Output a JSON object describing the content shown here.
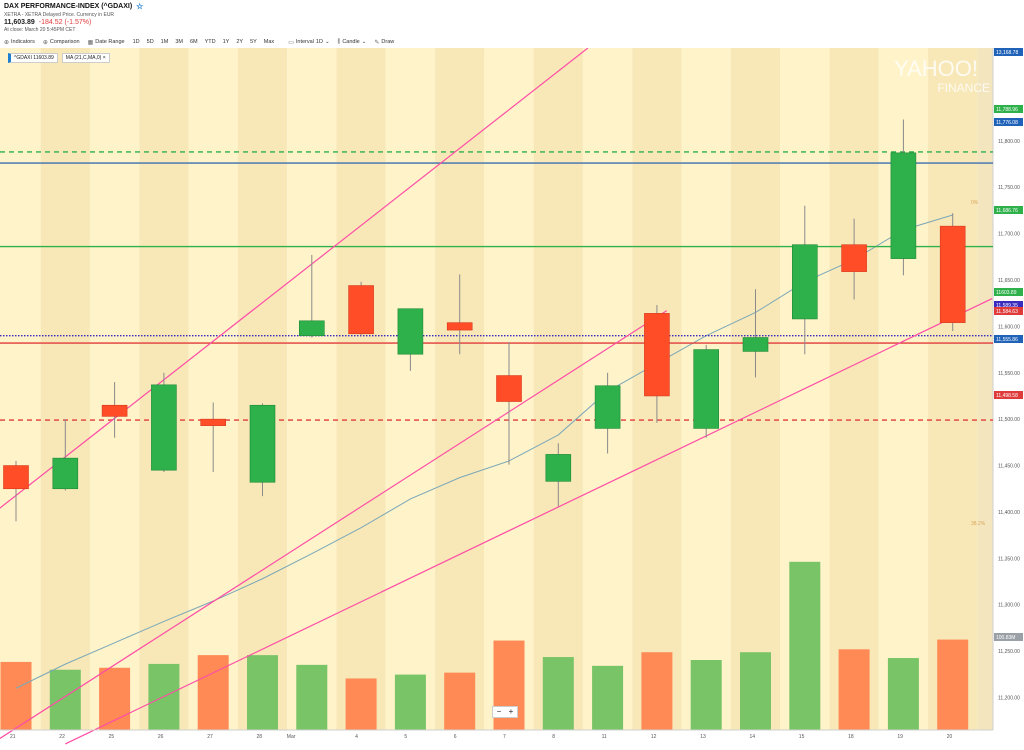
{
  "header": {
    "title": "DAX PERFORMANCE-INDEX (^GDAXI)",
    "subtitle": "XETRA - XETRA Delayed Price. Currency in EUR",
    "price": "11,603.89",
    "change": "-184.52 (-1.57%)",
    "close_note": "At close: March 20 5:45PM CET"
  },
  "toolbar": {
    "indicators": "Indicators",
    "comparison": "Comparison",
    "date_range": "Date Range",
    "ranges": [
      "1D",
      "5D",
      "1M",
      "3M",
      "6M",
      "YTD",
      "1Y",
      "2Y",
      "5Y",
      "Max"
    ],
    "interval": "Interval",
    "interval_value": "1D",
    "candle": "Candle",
    "draw": "Draw"
  },
  "legend": {
    "ticker": "^GDAXI 11603.89",
    "ma": "MA (21,C,MA,0)",
    "close": "×"
  },
  "zoom": {
    "minus": "−",
    "plus": "+"
  },
  "watermark": "YAHOO! FINANCE",
  "colors": {
    "up": "#2eb04a",
    "down": "#ff4d28",
    "vol_up": "#78c466",
    "vol_down": "#ff8a55",
    "trend": "#ff4da6",
    "ma": "#7aa7b8",
    "bg": "#fff3c9",
    "bg_alt": "#f8e8b8"
  },
  "chart_data": {
    "type": "candlestick",
    "x": [
      "21",
      "22",
      "25",
      "26",
      "27",
      "28",
      "Mar",
      "4",
      "5",
      "6",
      "7",
      "8",
      "11",
      "12",
      "13",
      "14",
      "15",
      "18",
      "19",
      "20"
    ],
    "candles": [
      {
        "o": 11450,
        "h": 11455,
        "l": 11390,
        "c": 11425
      },
      {
        "o": 11425,
        "h": 11500,
        "l": 11423,
        "c": 11458
      },
      {
        "o": 11515,
        "h": 11540,
        "l": 11480,
        "c": 11503
      },
      {
        "o": 11445,
        "h": 11550,
        "l": 11443,
        "c": 11537
      },
      {
        "o": 11500,
        "h": 11518,
        "l": 11443,
        "c": 11493
      },
      {
        "o": 11432,
        "h": 11517,
        "l": 11417,
        "c": 11515
      },
      {
        "o": 11590,
        "h": 11677,
        "l": 11588,
        "c": 11606
      },
      {
        "o": 11644,
        "h": 11648,
        "l": 11590,
        "c": 11592
      },
      {
        "o": 11570,
        "h": 11614,
        "l": 11552,
        "c": 11619
      },
      {
        "o": 11604,
        "h": 11656,
        "l": 11570,
        "c": 11596
      },
      {
        "o": 11547,
        "h": 11583,
        "l": 11451,
        "c": 11519
      },
      {
        "o": 11433,
        "h": 11474,
        "l": 11406,
        "c": 11462
      },
      {
        "o": 11490,
        "h": 11550,
        "l": 11463,
        "c": 11536
      },
      {
        "o": 11614,
        "h": 11623,
        "l": 11496,
        "c": 11525
      },
      {
        "o": 11490,
        "h": 11580,
        "l": 11480,
        "c": 11575
      },
      {
        "o": 11573,
        "h": 11640,
        "l": 11545,
        "c": 11588
      },
      {
        "o": 11608,
        "h": 11730,
        "l": 11570,
        "c": 11688
      },
      {
        "o": 11688,
        "h": 11716,
        "l": 11629,
        "c": 11659
      },
      {
        "o": 11673,
        "h": 11823,
        "l": 11655,
        "c": 11787
      },
      {
        "o": 11708,
        "h": 11722,
        "l": 11595,
        "c": 11604
      }
    ],
    "volume": [
      70,
      62,
      64,
      68,
      77,
      77,
      67,
      53,
      57,
      59,
      92,
      75,
      66,
      80,
      72,
      80,
      173,
      83,
      74,
      93
    ],
    "ma": [
      11210,
      11236,
      11259,
      11282,
      11304,
      11328,
      11355,
      11383,
      11414,
      11437,
      11455,
      11483,
      11530,
      11560,
      11590,
      11615,
      11648,
      11672,
      11704,
      11720
    ],
    "y_ticks": [
      11200,
      11250,
      11300,
      11350,
      11400,
      11450,
      11500,
      11550,
      11600,
      11650,
      11700,
      11750,
      11800
    ],
    "y_tick_labels": [
      "11,200.00",
      "11,250.00",
      "11,300.00",
      "11,350.00",
      "11,400.00",
      "11,450.00",
      "11,500.00",
      "11,550.00",
      "11,600.00",
      "11,650.00",
      "11,700.00",
      "11,750.00",
      "11,800.00"
    ],
    "ylim": [
      11165,
      11900
    ],
    "price_tags": [
      {
        "value": 11890,
        "label": "13,168.78",
        "color": "#1f62b8"
      },
      {
        "value": 11788,
        "label": "11,788.96",
        "color": "#2eb04a"
      },
      {
        "value": 11776,
        "label": "11,776.08",
        "color": "#1f62b8"
      },
      {
        "value": 11686,
        "label": "11,686.76",
        "color": "#2eb04a"
      },
      {
        "value": 11604,
        "label": "11603.89",
        "color": "#2eb04a"
      },
      {
        "value": 11590,
        "label": "11,589.35",
        "color": "#3a2bbf"
      },
      {
        "value": 11582,
        "label": "11,584.63",
        "color": "#e03b3b"
      },
      {
        "value": 11555,
        "label": "11,555.86",
        "color": "#1f62b8"
      },
      {
        "value": 11499,
        "label": "11,498.58",
        "color": "#e03b3b"
      },
      {
        "value": 11222,
        "label": "100.83M",
        "color": "#9aa0a6"
      }
    ],
    "fib_labels": [
      {
        "value": 11732,
        "label": "0%"
      },
      {
        "value": 11386,
        "label": "38.2%"
      }
    ],
    "h_lines": [
      {
        "value": 11788,
        "color": "#2eb04a",
        "dash": true
      },
      {
        "value": 11776,
        "color": "#3a6fb0",
        "dash": false
      },
      {
        "value": 11686,
        "color": "#2eb04a",
        "dash": false
      },
      {
        "value": 11590,
        "color": "#3a2bbf",
        "dash": true
      },
      {
        "value": 11582,
        "color": "#e03b3b",
        "dash": false
      },
      {
        "value": 11499,
        "color": "#e03b3b",
        "dash": true
      }
    ],
    "trendlines": [
      {
        "x1": -0.5,
        "y1": 11397,
        "x2": 11.6,
        "y2": 11900
      },
      {
        "x1": -0.5,
        "y1": 11150,
        "x2": 13.2,
        "y2": 11617
      },
      {
        "x1": 1.0,
        "y1": 11150,
        "x2": 19.8,
        "y2": 11630
      }
    ]
  }
}
